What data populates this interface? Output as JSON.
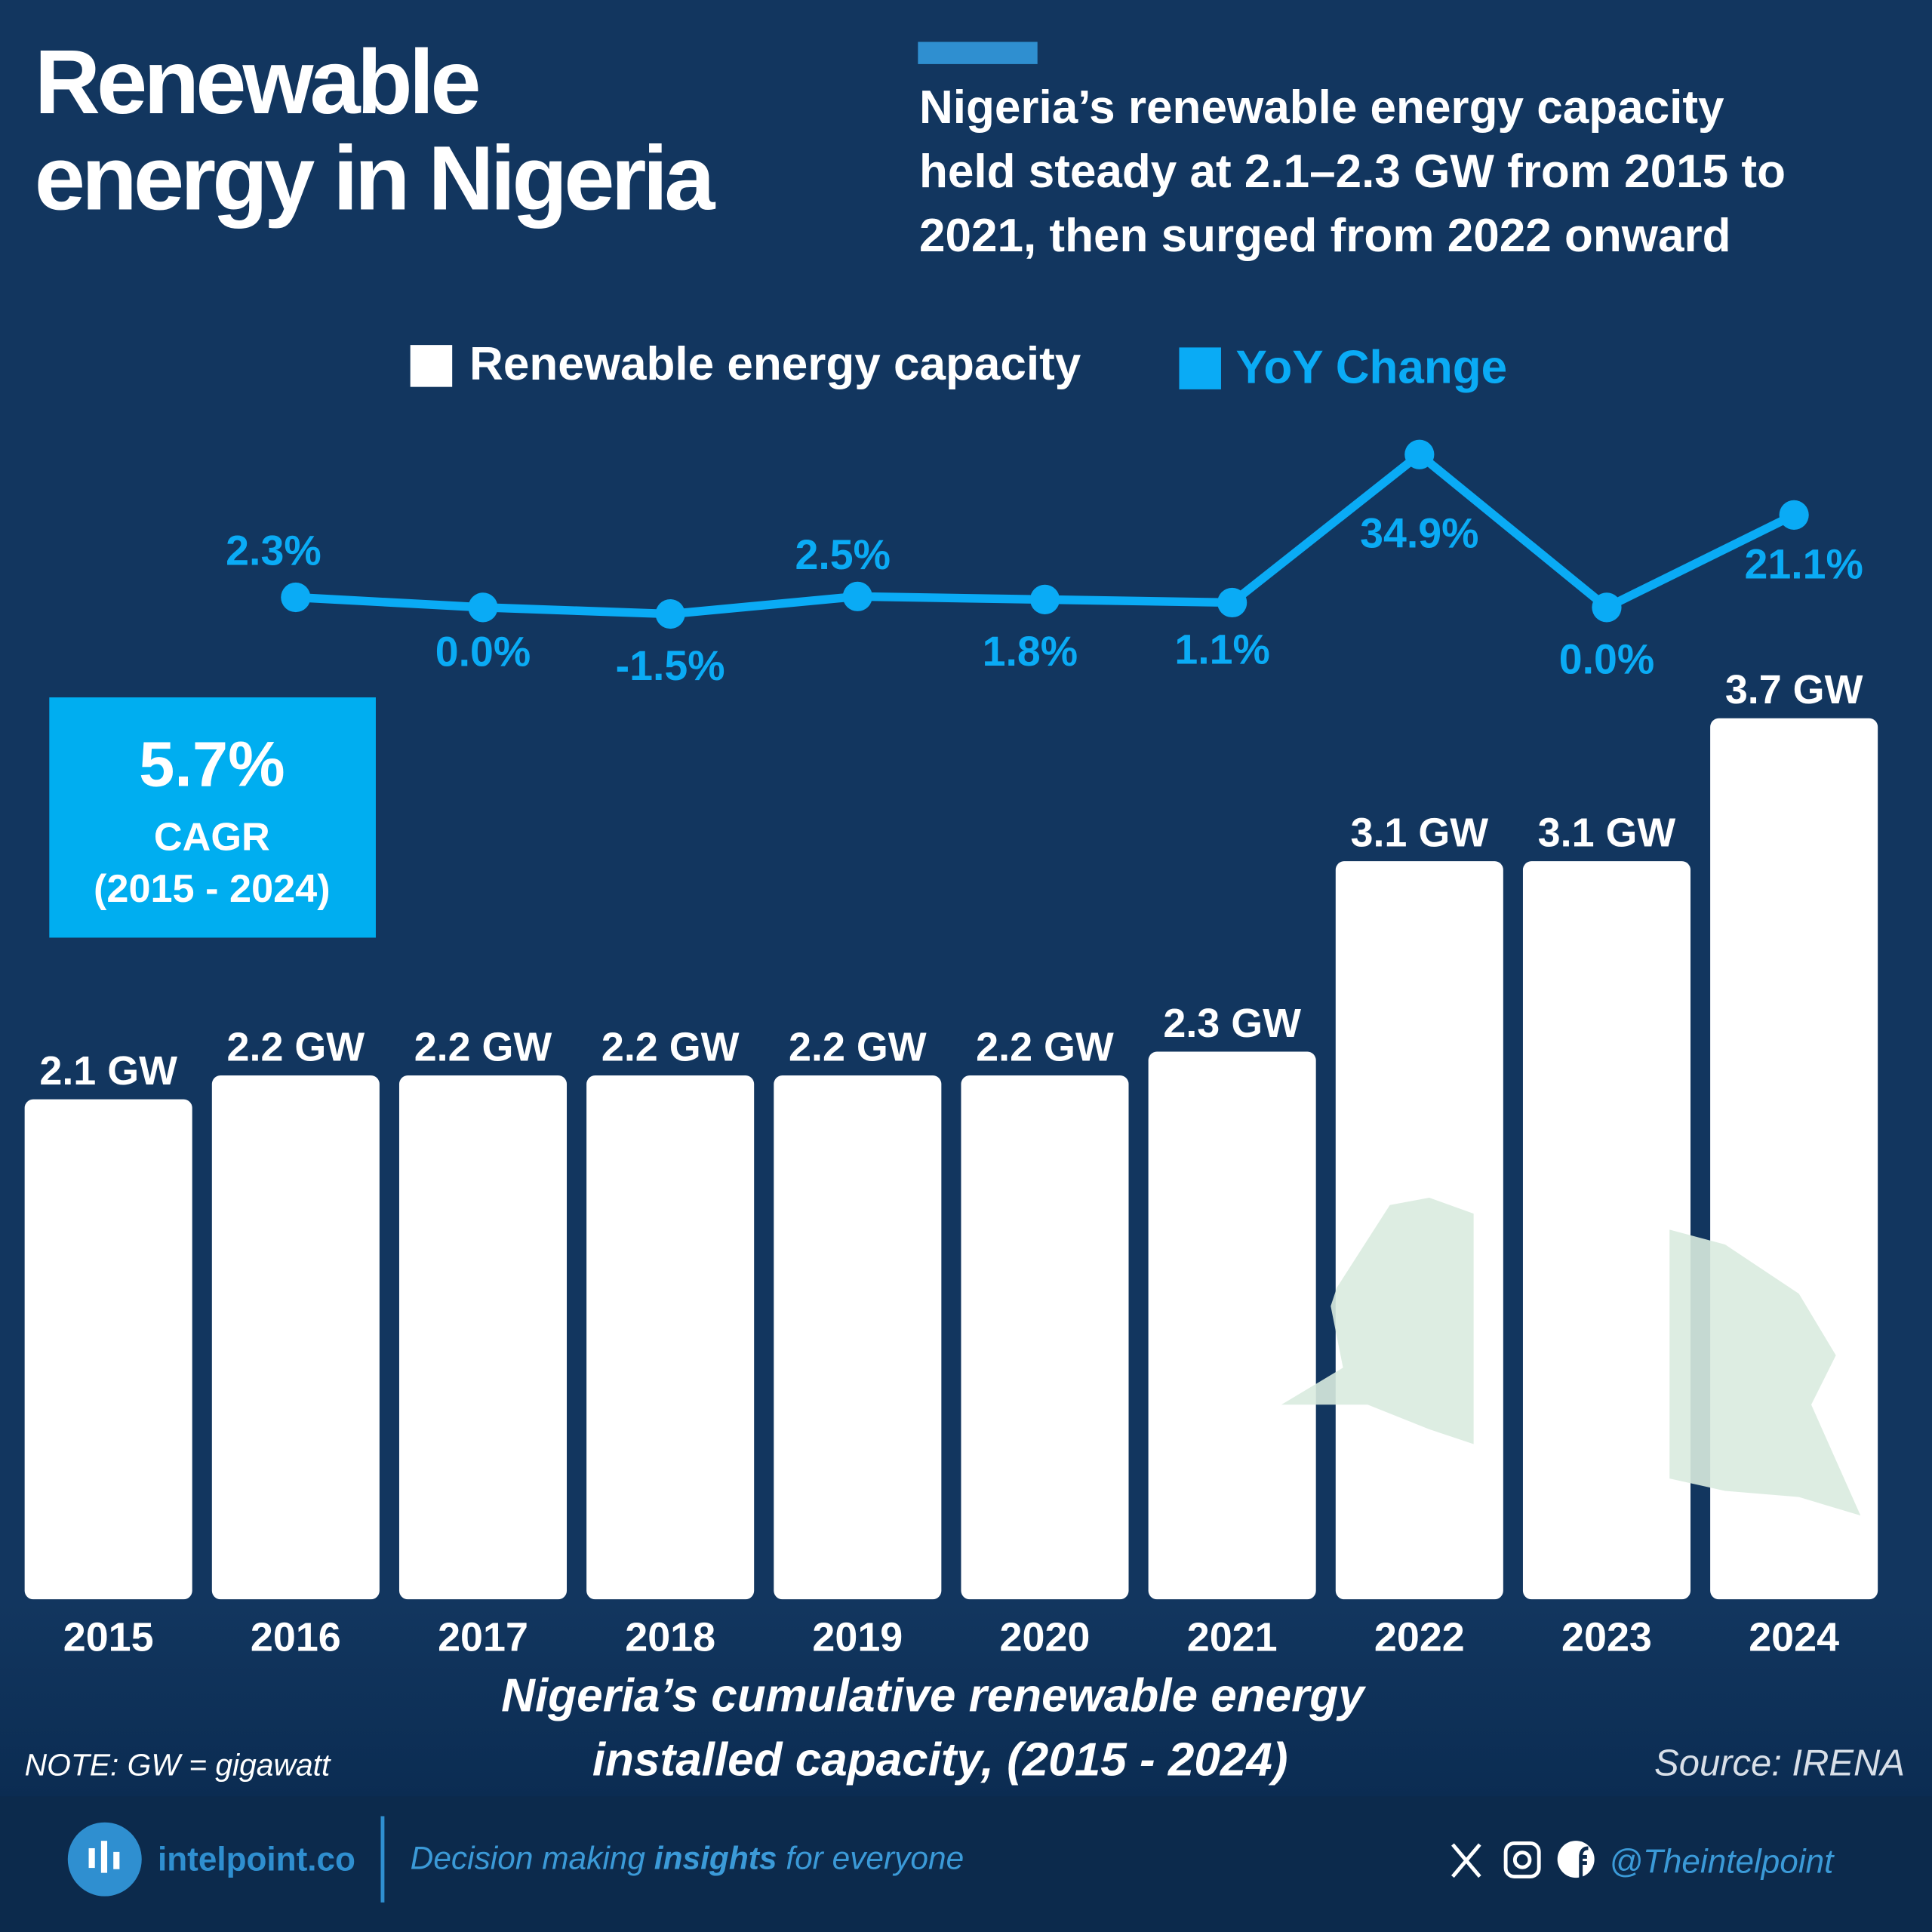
{
  "chart_data": {
    "type": "bar",
    "title": [
      "Renewable",
      "energy in Nigeria"
    ],
    "subtitle": [
      "Nigeria’s renewable energy capacity",
      "held steady at 2.1–2.3 GW from 2015 to",
      "2021, then surged from 2022 onward"
    ],
    "categories": [
      "2015",
      "2016",
      "2017",
      "2018",
      "2019",
      "2020",
      "2021",
      "2022",
      "2023",
      "2024"
    ],
    "series": [
      {
        "name": "Renewable energy capacity",
        "color": "#ffffff",
        "values": [
          2.1,
          2.2,
          2.2,
          2.2,
          2.2,
          2.2,
          2.3,
          3.1,
          3.1,
          3.7
        ],
        "value_labels": [
          "2.1 GW",
          "2.2 GW",
          "2.2 GW",
          "2.2 GW",
          "2.2 GW",
          "2.2 GW",
          "2.3 GW",
          "3.1 GW",
          "3.1 GW",
          "3.7 GW"
        ]
      },
      {
        "name": "YoY Change",
        "color": "#0aabf5",
        "type": "line",
        "axis": "y2",
        "values": [
          null,
          2.3,
          0.0,
          -1.5,
          2.5,
          1.8,
          1.1,
          34.9,
          0.0,
          21.1
        ],
        "value_labels": [
          null,
          "2.3%",
          "0.0%",
          "-1.5%",
          "2.5%",
          "1.8%",
          "1.1%",
          "34.9%",
          "0.0%",
          "21.1%"
        ]
      }
    ],
    "ylim": [
      0,
      4
    ],
    "y2lim": [
      -5,
      40
    ],
    "annotation": {
      "value": "5.7%",
      "label": "CAGR",
      "period": "(2015 - 2024)"
    },
    "x_axis_label": [
      "Nigeria’s cumulative renewable energy",
      "installed capacity, (2015 - 2024)"
    ],
    "note": "NOTE: GW = gigawatt",
    "source": "Source: IRENA",
    "footer": {
      "brand": "intelpoint.co",
      "tagline": [
        "Decision making ",
        "insights",
        " for everyone"
      ],
      "handle": "@Theintelpoint"
    }
  }
}
